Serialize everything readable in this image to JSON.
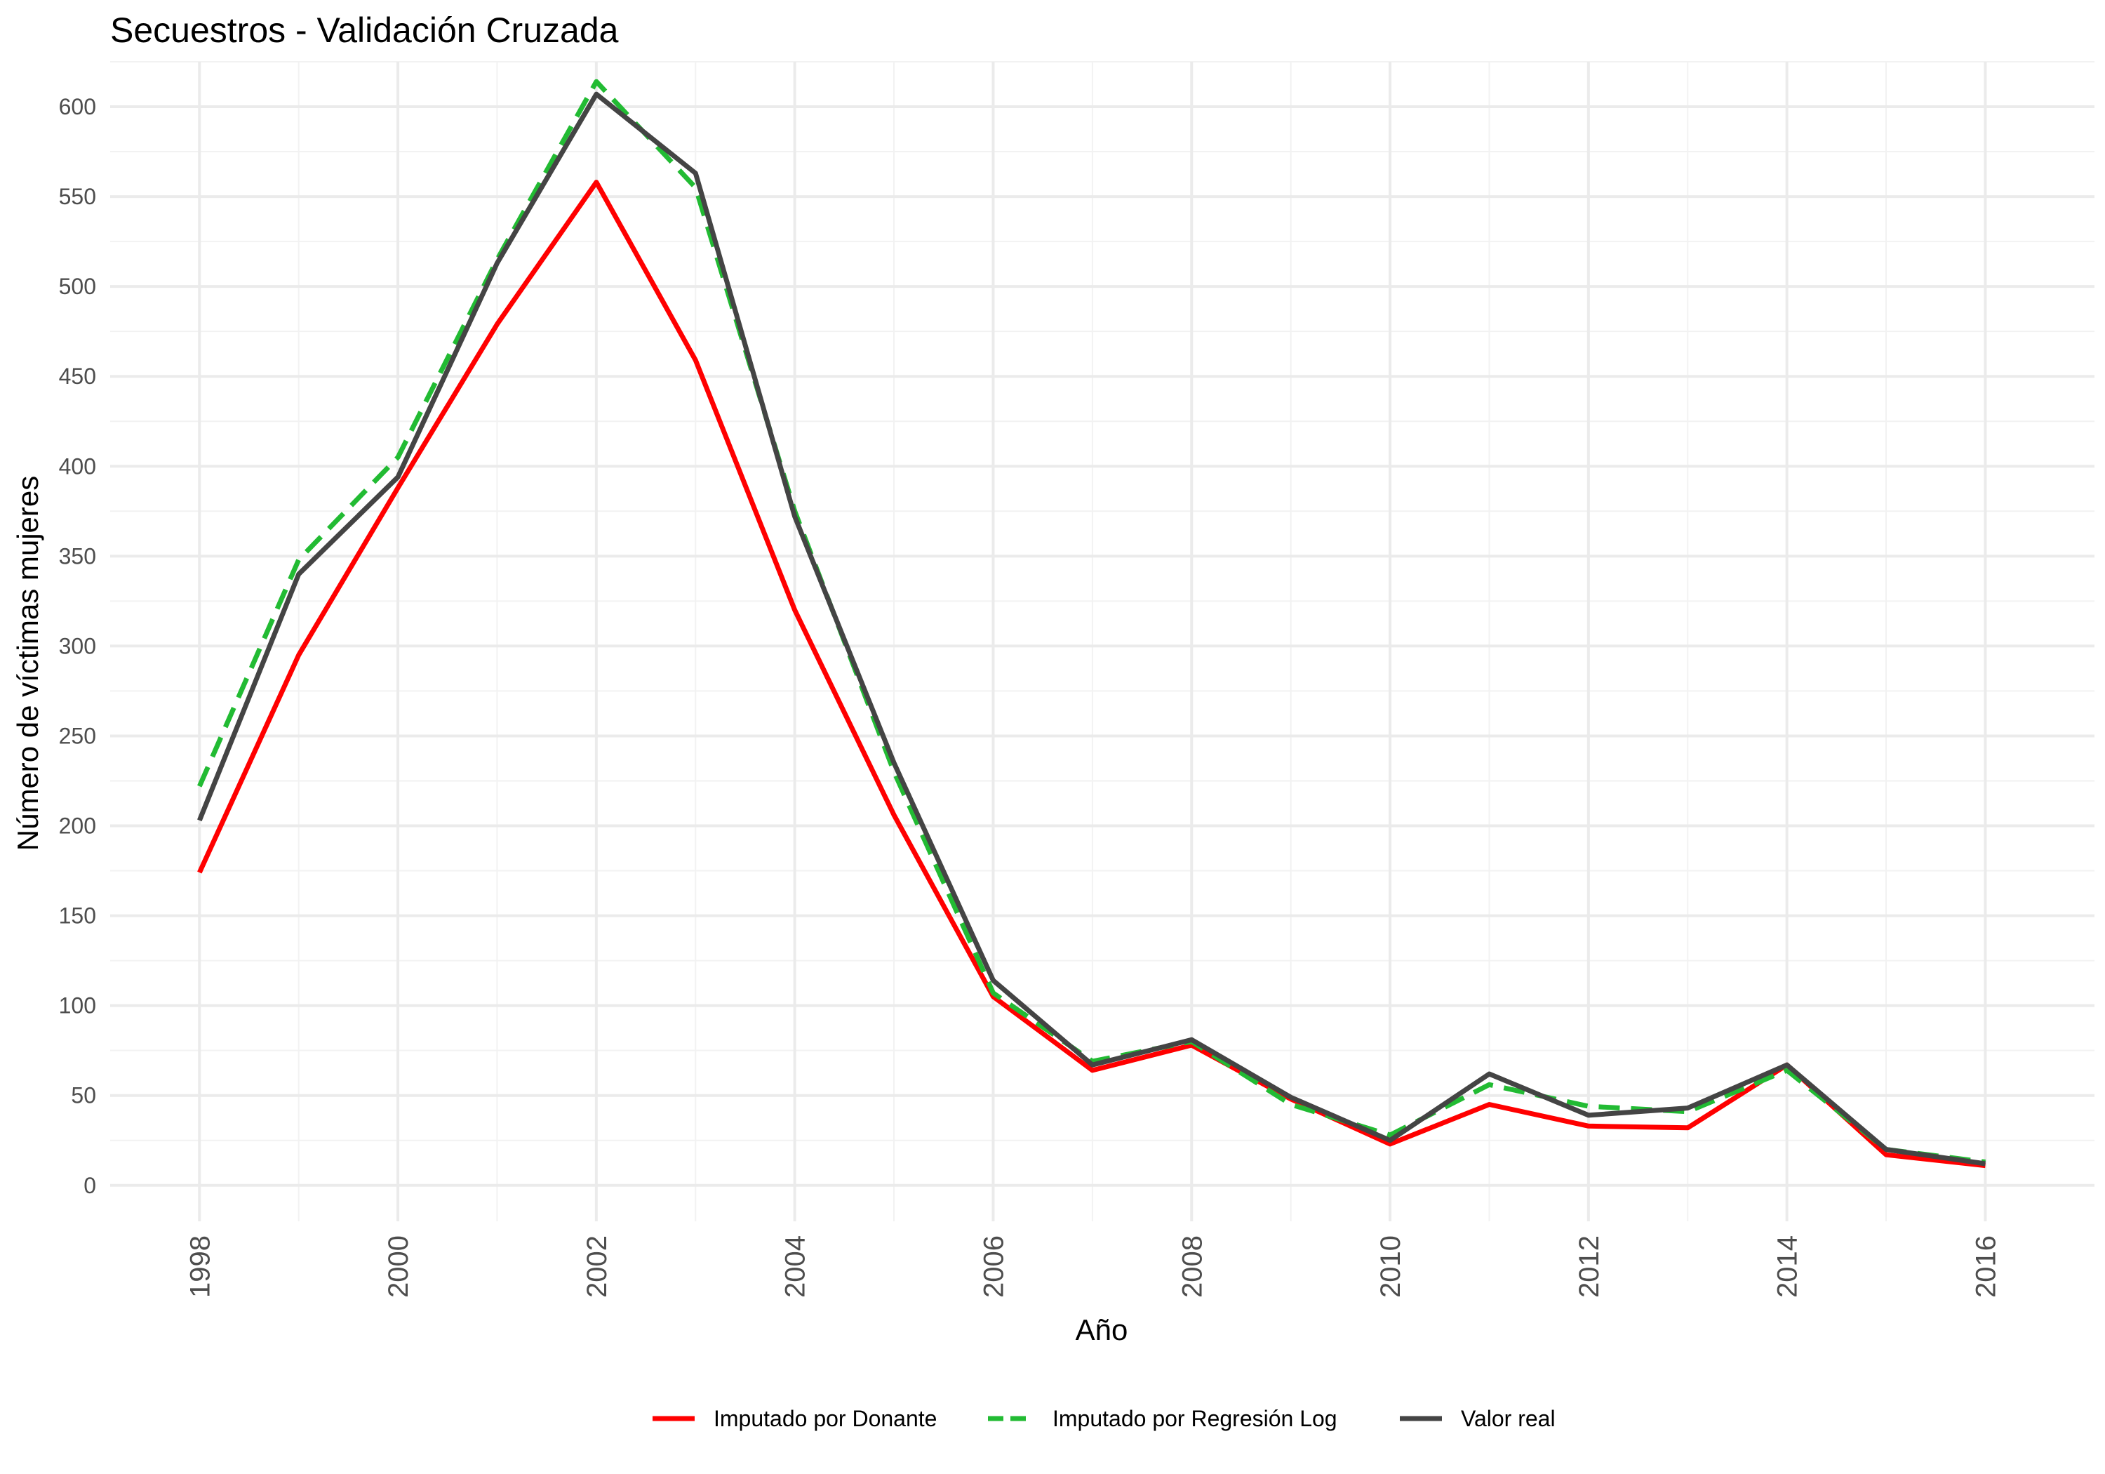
{
  "chart_data": {
    "type": "line",
    "title": "Secuestros - Validación Cruzada",
    "xlabel": "Año",
    "ylabel": "Número de víctimas mujeres",
    "x": [
      1998,
      1999,
      2000,
      2001,
      2002,
      2003,
      2004,
      2005,
      2006,
      2007,
      2008,
      2009,
      2010,
      2011,
      2012,
      2013,
      2014,
      2015,
      2016
    ],
    "xticks": [
      "1998",
      "2000",
      "2002",
      "2004",
      "2006",
      "2008",
      "2010",
      "2012",
      "2014",
      "2016"
    ],
    "yticks": [
      "0",
      "50",
      "100",
      "150",
      "200",
      "250",
      "300",
      "350",
      "400",
      "450",
      "500",
      "550",
      "600"
    ],
    "xlim": [
      1997.1,
      2017.1
    ],
    "ylim": [
      -20,
      625
    ],
    "grid": true,
    "legend_position": "bottom",
    "series": [
      {
        "name": "Imputado por Donante",
        "color": "#ff0000",
        "dash": "solid",
        "values": [
          174,
          295,
          388,
          479,
          558,
          459,
          320,
          206,
          105,
          64,
          78,
          48,
          23,
          45,
          33,
          32,
          67,
          17,
          11
        ]
      },
      {
        "name": "Imputado por Regresión Log",
        "color": "#22bb33",
        "dash": "dashed",
        "values": [
          222,
          348,
          405,
          515,
          614,
          555,
          375,
          230,
          107,
          69,
          80,
          45,
          28,
          56,
          44,
          41,
          64,
          20,
          13
        ]
      },
      {
        "name": "Valor real",
        "color": "#444444",
        "dash": "solid",
        "values": [
          203,
          340,
          394,
          513,
          607,
          563,
          372,
          235,
          114,
          67,
          81,
          49,
          25,
          62,
          39,
          43,
          67,
          20,
          12
        ]
      }
    ]
  }
}
